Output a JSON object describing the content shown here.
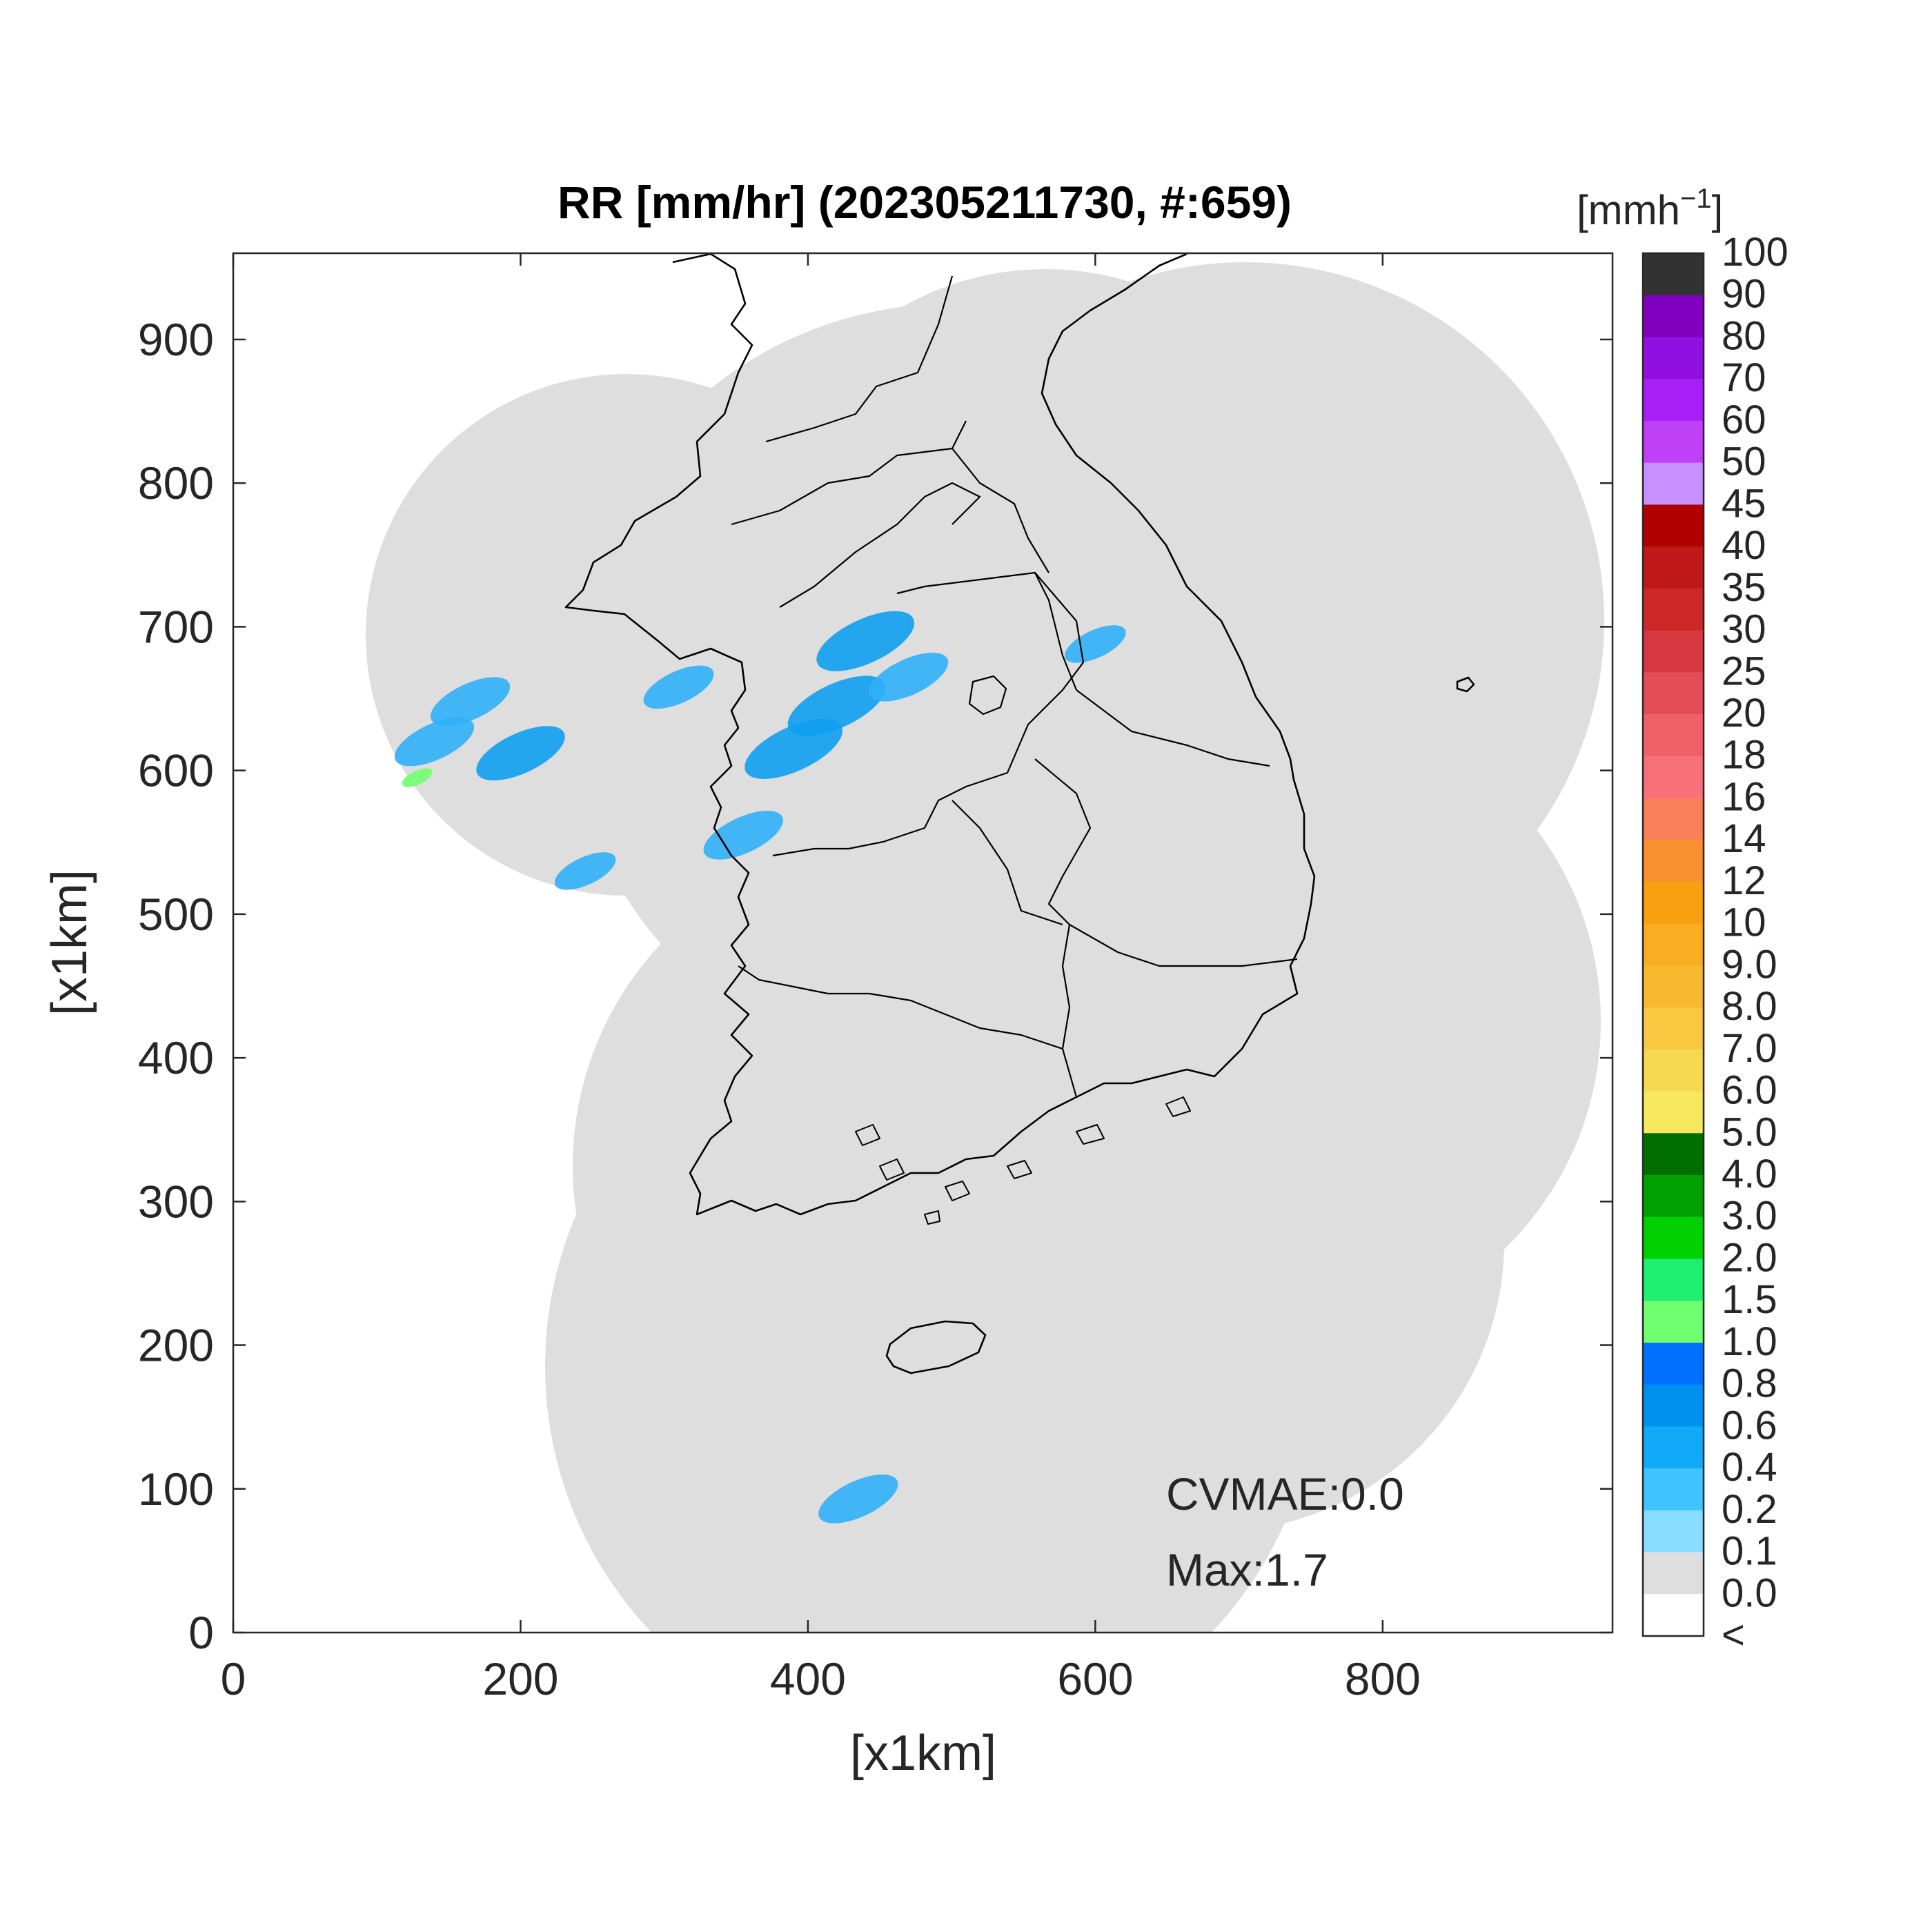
{
  "chart_data": {
    "type": "heatmap",
    "title": "RR [mm/hr] (202305211730, #:659)",
    "xlabel": "[x1km]",
    "ylabel": "[x1km]",
    "xlim": [
      0,
      960
    ],
    "ylim": [
      0,
      960
    ],
    "x_ticks": [
      "0",
      "200",
      "400",
      "600",
      "800"
    ],
    "x_tick_values": [
      0,
      200,
      400,
      600,
      800
    ],
    "y_ticks": [
      "0",
      "100",
      "200",
      "300",
      "400",
      "500",
      "600",
      "700",
      "800",
      "900"
    ],
    "y_tick_values": [
      0,
      100,
      200,
      300,
      400,
      500,
      600,
      700,
      800,
      900
    ],
    "annotations": [
      "CVMAE:0.0",
      "Max:1.7"
    ],
    "colorbar": {
      "unit_label": "[mmh",
      "unit_exponent": "−1",
      "unit_close": "]",
      "labels": [
        "100",
        "90",
        "80",
        "70",
        "60",
        "50",
        "45",
        "40",
        "35",
        "30",
        "25",
        "20",
        "18",
        "16",
        "14",
        "12",
        "10",
        "9.0",
        "8.0",
        "7.0",
        "6.0",
        "5.0",
        "4.0",
        "3.0",
        "2.0",
        "1.5",
        "1.0",
        "0.8",
        "0.6",
        "0.4",
        "0.2",
        "0.1",
        "0.0",
        "<"
      ],
      "colors": [
        "#323232",
        "#8000c0",
        "#9010e0",
        "#a820f8",
        "#c040f8",
        "#c890ff",
        "#b00000",
        "#c01818",
        "#cc2828",
        "#d83840",
        "#e44c58",
        "#f06068",
        "#f87078",
        "#f88058",
        "#f89030",
        "#f8a010",
        "#f8ae20",
        "#f8b830",
        "#f8c840",
        "#f8d850",
        "#f8e860",
        "#006e00",
        "#00a000",
        "#00d000",
        "#20f070",
        "#70ff70",
        "#0070ff",
        "#0090f0",
        "#10aaf8",
        "#40c4ff",
        "#88dcff",
        "#dedede",
        "#ffffff"
      ]
    },
    "coverage_color": "#dedede",
    "rain_color": "#30b0f8",
    "peak_color": "#70ff70",
    "rain_cells": [
      {
        "x": 140,
        "y": 620,
        "v": 0.4
      },
      {
        "x": 165,
        "y": 648,
        "v": 0.4
      },
      {
        "x": 200,
        "y": 612,
        "v": 0.5
      },
      {
        "x": 128,
        "y": 595,
        "v": 1.7
      },
      {
        "x": 310,
        "y": 658,
        "v": 0.3
      },
      {
        "x": 390,
        "y": 615,
        "v": 0.6
      },
      {
        "x": 420,
        "y": 645,
        "v": 0.6
      },
      {
        "x": 440,
        "y": 690,
        "v": 0.6
      },
      {
        "x": 470,
        "y": 665,
        "v": 0.4
      },
      {
        "x": 355,
        "y": 555,
        "v": 0.4
      },
      {
        "x": 245,
        "y": 530,
        "v": 0.2
      },
      {
        "x": 600,
        "y": 688,
        "v": 0.2
      },
      {
        "x": 435,
        "y": 93,
        "v": 0.4
      }
    ]
  }
}
